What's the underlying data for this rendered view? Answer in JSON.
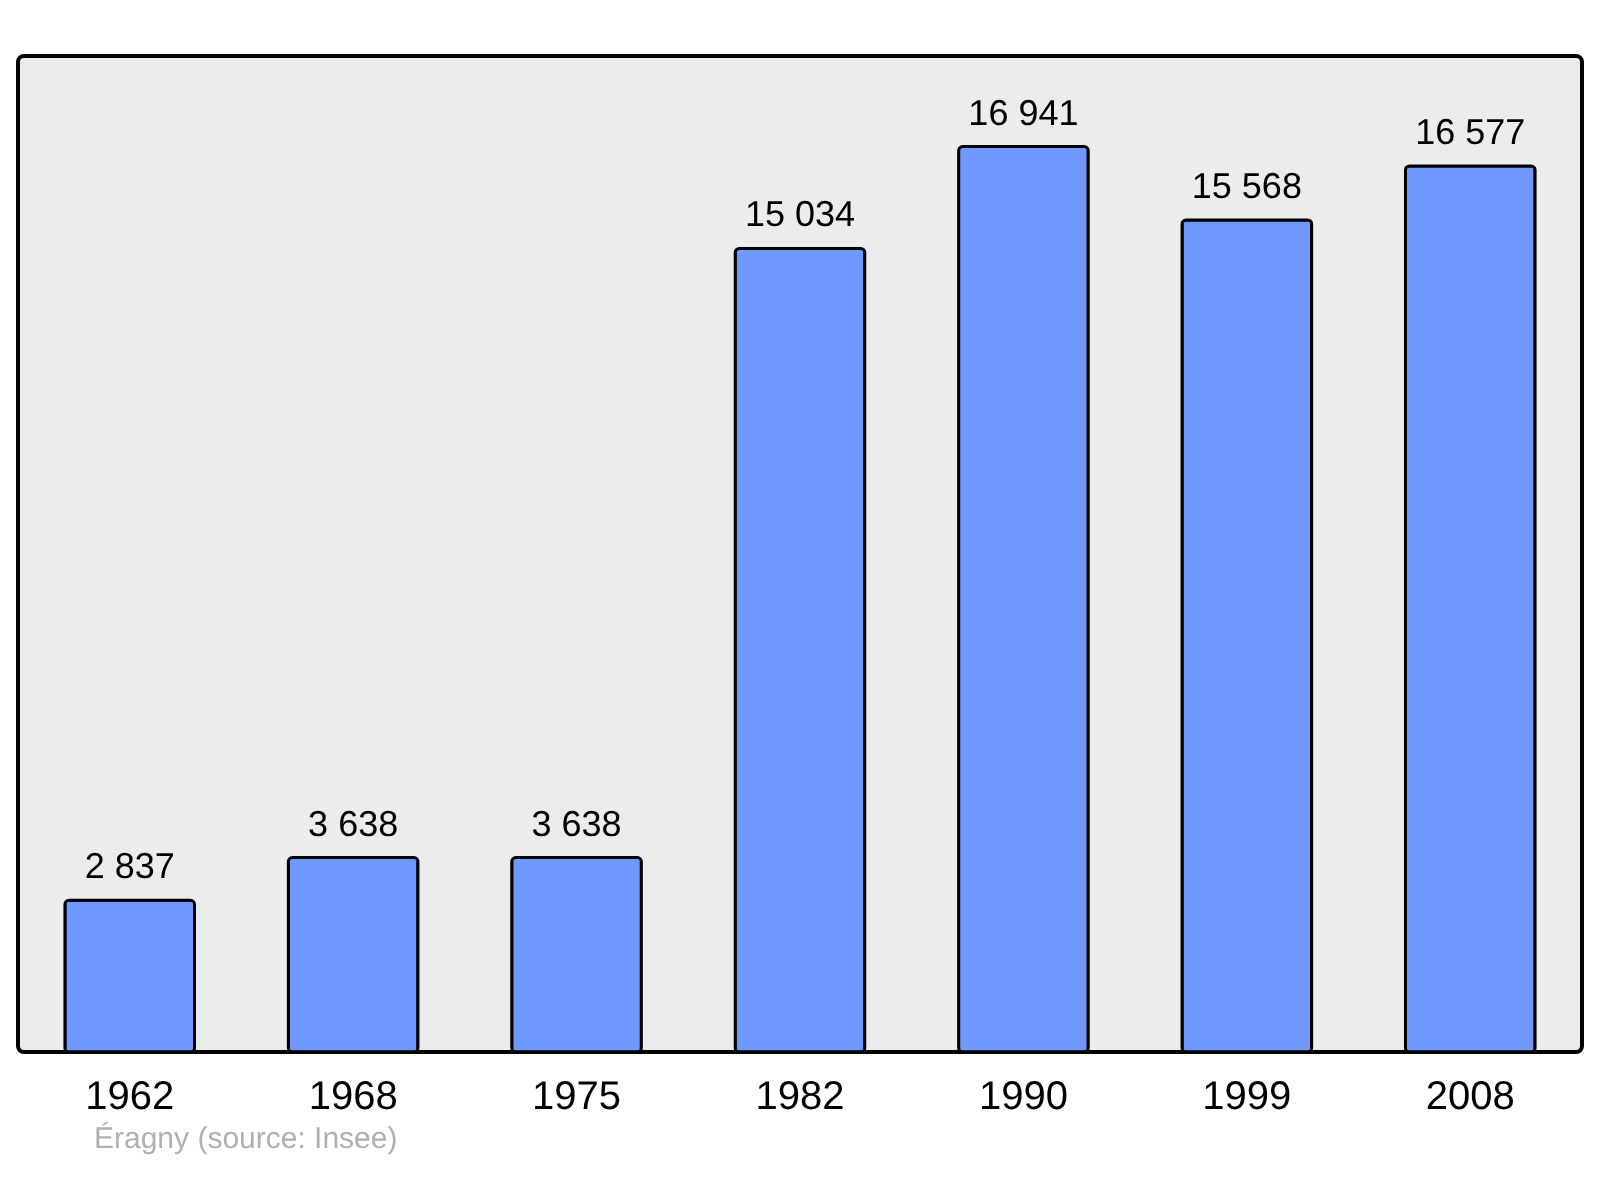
{
  "chart_data": {
    "type": "bar",
    "categories": [
      "1962",
      "1968",
      "1975",
      "1982",
      "1990",
      "1999",
      "2008"
    ],
    "values": [
      2837,
      3638,
      3638,
      15034,
      16941,
      15568,
      16577
    ],
    "color": "#7099ff",
    "data_labels": true,
    "value_labels": [
      "2 837",
      "3 638",
      "3 638",
      "15 034",
      "16 941",
      "15 568",
      "16 577"
    ],
    "grid": false,
    "annotations": [
      "Éragny    (source: Insee)"
    ]
  }
}
